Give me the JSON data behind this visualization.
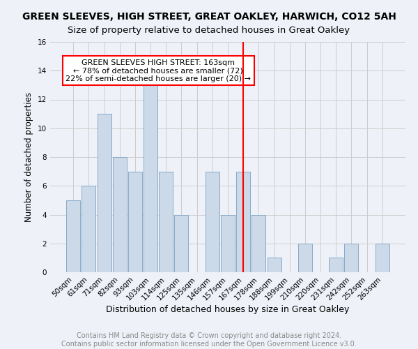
{
  "title": "GREEN SLEEVES, HIGH STREET, GREAT OAKLEY, HARWICH, CO12 5AH",
  "subtitle": "Size of property relative to detached houses in Great Oakley",
  "xlabel": "Distribution of detached houses by size in Great Oakley",
  "ylabel": "Number of detached properties",
  "footer_line1": "Contains HM Land Registry data © Crown copyright and database right 2024.",
  "footer_line2": "Contains public sector information licensed under the Open Government Licence v3.0.",
  "bar_labels": [
    "50sqm",
    "61sqm",
    "71sqm",
    "82sqm",
    "93sqm",
    "103sqm",
    "114sqm",
    "125sqm",
    "135sqm",
    "146sqm",
    "157sqm",
    "167sqm",
    "178sqm",
    "188sqm",
    "199sqm",
    "210sqm",
    "220sqm",
    "231sqm",
    "242sqm",
    "252sqm",
    "263sqm"
  ],
  "bar_values": [
    5,
    6,
    11,
    8,
    7,
    13,
    7,
    4,
    0,
    7,
    4,
    7,
    4,
    1,
    0,
    2,
    0,
    1,
    2,
    0,
    2
  ],
  "bar_color": "#ccd9e8",
  "bar_edgecolor": "#88aac8",
  "vline_x": 11,
  "vline_color": "red",
  "annotation_text": "GREEN SLEEVES HIGH STREET: 163sqm\n← 78% of detached houses are smaller (72)\n22% of semi-detached houses are larger (20) →",
  "annotation_box_color": "white",
  "annotation_box_edgecolor": "red",
  "ylim": [
    0,
    16
  ],
  "yticks": [
    0,
    2,
    4,
    6,
    8,
    10,
    12,
    14,
    16
  ],
  "grid_color": "#cccccc",
  "background_color": "#eef2f8",
  "title_fontsize": 10,
  "subtitle_fontsize": 9.5,
  "xlabel_fontsize": 9,
  "ylabel_fontsize": 8.5,
  "footer_fontsize": 7,
  "annotation_fontsize": 8,
  "tick_fontsize": 7.5
}
